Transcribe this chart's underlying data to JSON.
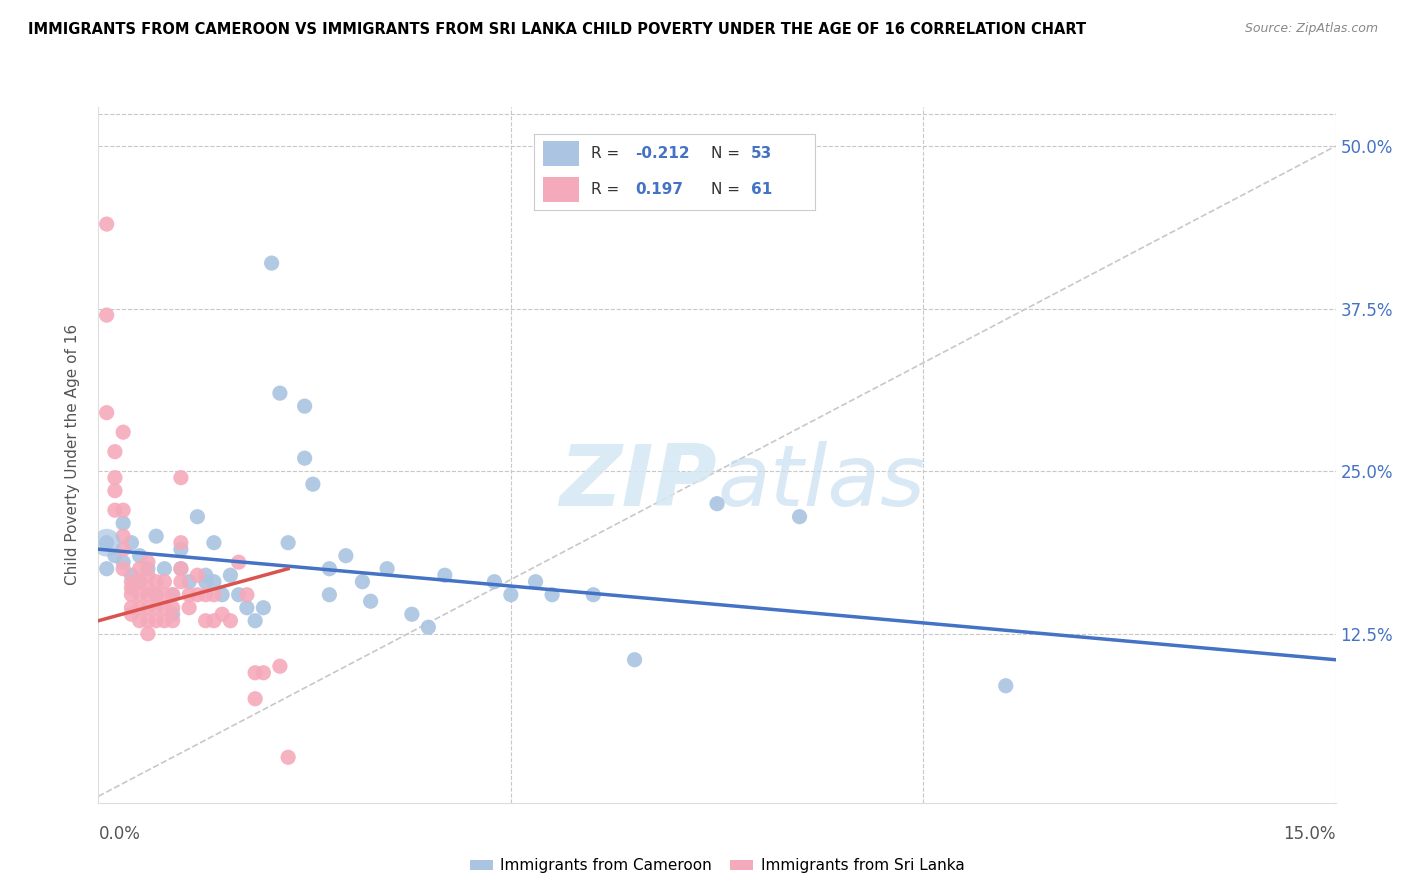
{
  "title": "IMMIGRANTS FROM CAMEROON VS IMMIGRANTS FROM SRI LANKA CHILD POVERTY UNDER THE AGE OF 16 CORRELATION CHART",
  "source": "Source: ZipAtlas.com",
  "ylabel": "Child Poverty Under the Age of 16",
  "yticks": [
    0.0,
    0.125,
    0.25,
    0.375,
    0.5
  ],
  "ytick_labels": [
    "",
    "12.5%",
    "25.0%",
    "37.5%",
    "50.0%"
  ],
  "xmin": 0.0,
  "xmax": 0.15,
  "ymin": -0.005,
  "ymax": 0.53,
  "watermark_zip": "ZIP",
  "watermark_atlas": "atlas",
  "legend_label_blue": "Immigrants from Cameroon",
  "legend_label_pink": "Immigrants from Sri Lanka",
  "blue_color": "#aac4e2",
  "pink_color": "#f5aabb",
  "line_blue_color": "#4472c4",
  "line_pink_color": "#d9534f",
  "dashed_line_color": "#c8c8c8",
  "blue_scatter": [
    [
      0.001,
      0.195
    ],
    [
      0.001,
      0.175
    ],
    [
      0.002,
      0.185
    ],
    [
      0.003,
      0.21
    ],
    [
      0.003,
      0.18
    ],
    [
      0.004,
      0.195
    ],
    [
      0.004,
      0.17
    ],
    [
      0.005,
      0.185
    ],
    [
      0.005,
      0.165
    ],
    [
      0.006,
      0.175
    ],
    [
      0.007,
      0.2
    ],
    [
      0.007,
      0.155
    ],
    [
      0.008,
      0.175
    ],
    [
      0.009,
      0.155
    ],
    [
      0.009,
      0.14
    ],
    [
      0.01,
      0.19
    ],
    [
      0.01,
      0.175
    ],
    [
      0.011,
      0.165
    ],
    [
      0.012,
      0.215
    ],
    [
      0.013,
      0.17
    ],
    [
      0.013,
      0.165
    ],
    [
      0.014,
      0.195
    ],
    [
      0.014,
      0.165
    ],
    [
      0.015,
      0.155
    ],
    [
      0.016,
      0.17
    ],
    [
      0.017,
      0.155
    ],
    [
      0.018,
      0.145
    ],
    [
      0.019,
      0.135
    ],
    [
      0.02,
      0.145
    ],
    [
      0.021,
      0.41
    ],
    [
      0.022,
      0.31
    ],
    [
      0.023,
      0.195
    ],
    [
      0.025,
      0.3
    ],
    [
      0.025,
      0.26
    ],
    [
      0.026,
      0.24
    ],
    [
      0.028,
      0.175
    ],
    [
      0.028,
      0.155
    ],
    [
      0.03,
      0.185
    ],
    [
      0.032,
      0.165
    ],
    [
      0.033,
      0.15
    ],
    [
      0.035,
      0.175
    ],
    [
      0.038,
      0.14
    ],
    [
      0.04,
      0.13
    ],
    [
      0.042,
      0.17
    ],
    [
      0.048,
      0.165
    ],
    [
      0.05,
      0.155
    ],
    [
      0.053,
      0.165
    ],
    [
      0.055,
      0.155
    ],
    [
      0.06,
      0.155
    ],
    [
      0.065,
      0.105
    ],
    [
      0.075,
      0.225
    ],
    [
      0.085,
      0.215
    ],
    [
      0.11,
      0.085
    ]
  ],
  "pink_scatter": [
    [
      0.001,
      0.44
    ],
    [
      0.001,
      0.37
    ],
    [
      0.001,
      0.295
    ],
    [
      0.002,
      0.265
    ],
    [
      0.002,
      0.245
    ],
    [
      0.002,
      0.235
    ],
    [
      0.002,
      0.22
    ],
    [
      0.003,
      0.28
    ],
    [
      0.003,
      0.22
    ],
    [
      0.003,
      0.2
    ],
    [
      0.003,
      0.19
    ],
    [
      0.003,
      0.175
    ],
    [
      0.004,
      0.165
    ],
    [
      0.004,
      0.16
    ],
    [
      0.004,
      0.155
    ],
    [
      0.004,
      0.145
    ],
    [
      0.004,
      0.14
    ],
    [
      0.005,
      0.175
    ],
    [
      0.005,
      0.165
    ],
    [
      0.005,
      0.155
    ],
    [
      0.005,
      0.145
    ],
    [
      0.005,
      0.135
    ],
    [
      0.006,
      0.18
    ],
    [
      0.006,
      0.17
    ],
    [
      0.006,
      0.16
    ],
    [
      0.006,
      0.155
    ],
    [
      0.006,
      0.145
    ],
    [
      0.006,
      0.135
    ],
    [
      0.006,
      0.125
    ],
    [
      0.007,
      0.165
    ],
    [
      0.007,
      0.155
    ],
    [
      0.007,
      0.145
    ],
    [
      0.007,
      0.135
    ],
    [
      0.008,
      0.165
    ],
    [
      0.008,
      0.155
    ],
    [
      0.008,
      0.145
    ],
    [
      0.008,
      0.135
    ],
    [
      0.009,
      0.155
    ],
    [
      0.009,
      0.145
    ],
    [
      0.009,
      0.135
    ],
    [
      0.01,
      0.245
    ],
    [
      0.01,
      0.195
    ],
    [
      0.01,
      0.175
    ],
    [
      0.01,
      0.165
    ],
    [
      0.011,
      0.155
    ],
    [
      0.011,
      0.145
    ],
    [
      0.012,
      0.17
    ],
    [
      0.012,
      0.155
    ],
    [
      0.013,
      0.155
    ],
    [
      0.013,
      0.135
    ],
    [
      0.014,
      0.155
    ],
    [
      0.014,
      0.135
    ],
    [
      0.015,
      0.14
    ],
    [
      0.016,
      0.135
    ],
    [
      0.017,
      0.18
    ],
    [
      0.018,
      0.155
    ],
    [
      0.019,
      0.095
    ],
    [
      0.019,
      0.075
    ],
    [
      0.02,
      0.095
    ],
    [
      0.022,
      0.1
    ],
    [
      0.023,
      0.03
    ]
  ],
  "blue_line_x": [
    0.0,
    0.15
  ],
  "blue_line_y": [
    0.19,
    0.105
  ],
  "pink_line_x": [
    0.0,
    0.023
  ],
  "pink_line_y": [
    0.135,
    0.175
  ],
  "diag_line_x": [
    0.0,
    0.15
  ],
  "diag_line_y": [
    0.0,
    0.5
  ]
}
